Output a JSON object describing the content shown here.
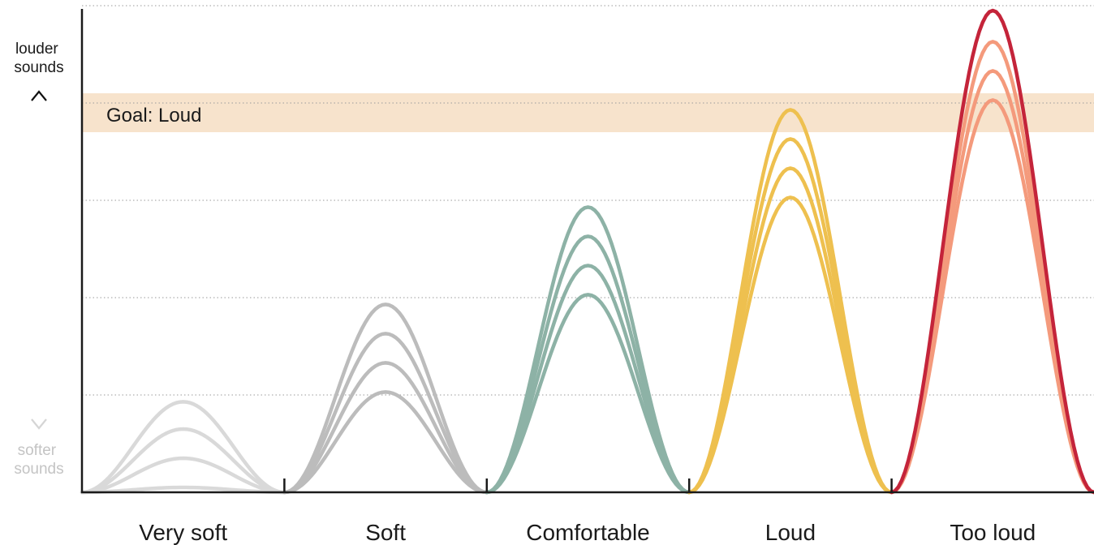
{
  "chart_data": {
    "type": "line",
    "categories": [
      "Very soft",
      "Soft",
      "Comfortable",
      "Loud",
      "Too loud"
    ],
    "ylim": [
      0,
      5
    ],
    "grid": true,
    "y_axis_top_label": "louder\nsounds",
    "y_axis_bottom_label": "softer\nsounds",
    "goal_band": {
      "label": "Goal: Loud",
      "range": [
        3.7,
        4.1
      ],
      "color": "#f7e3cc"
    },
    "groups": [
      {
        "category": "Very soft",
        "color": "#d9d9d9",
        "peaks": [
          0.05,
          0.35,
          0.65,
          0.93
        ]
      },
      {
        "category": "Soft",
        "color": "#bcbcbc",
        "peaks": [
          1.03,
          1.33,
          1.63,
          1.93
        ]
      },
      {
        "category": "Comfortable",
        "color": "#8db2a6",
        "peaks": [
          2.03,
          2.33,
          2.63,
          2.93
        ]
      },
      {
        "category": "Loud",
        "color": "#eec04f",
        "peaks": [
          3.03,
          3.33,
          3.63,
          3.93
        ]
      },
      {
        "category": "Too loud",
        "color": "#f49a7c",
        "peaks": [
          4.03,
          4.33,
          4.63
        ],
        "highlight": {
          "value": 4.95,
          "color": "#c4243a"
        }
      }
    ]
  }
}
